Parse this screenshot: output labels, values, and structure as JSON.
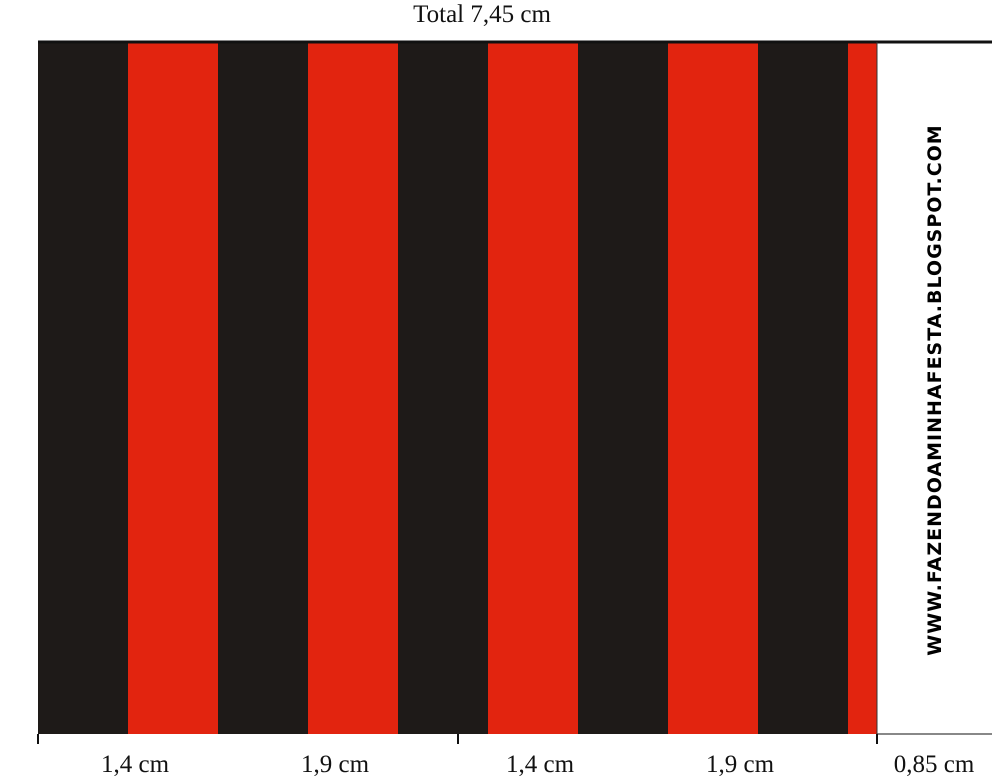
{
  "header": {
    "title": "Total 7,45 cm"
  },
  "measures": [
    "1,4 cm",
    "1,9 cm",
    "1,4 cm",
    "1,9 cm",
    "0,85 cm"
  ],
  "watermark": "WWW.FAZENDOAMINHAFESTA.BLOGSPOT.COM"
}
